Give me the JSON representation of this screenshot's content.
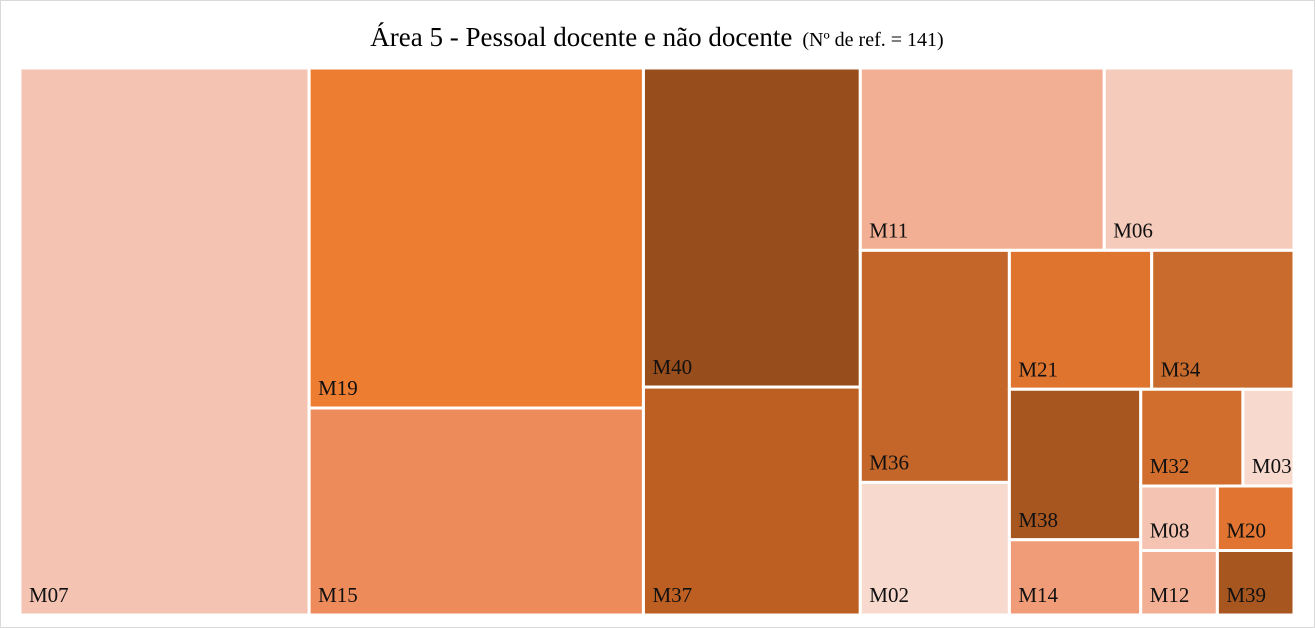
{
  "chart_data": {
    "type": "treemap",
    "title": "Área 5 - Pessoal docente e não docente",
    "title_note": "(Nº de ref. = 141)",
    "categories": [
      "M07",
      "M19",
      "M15",
      "M40",
      "M37",
      "M11",
      "M06",
      "M36",
      "M02",
      "M21",
      "M34",
      "M38",
      "M14",
      "M32",
      "M03",
      "M08",
      "M12",
      "M20",
      "M39"
    ],
    "values": [
      32,
      23,
      14,
      14,
      10,
      9,
      7,
      7,
      4,
      4,
      4,
      4,
      2,
      2,
      1,
      1,
      1,
      1,
      1
    ],
    "colors": [
      "#f4c3b2",
      "#ed7d31",
      "#ed8c5a",
      "#974d1c",
      "#bd5f22",
      "#f2af94",
      "#f5cbbb",
      "#c4662a",
      "#f8d9ce",
      "#de742e",
      "#c96b2c",
      "#a85620",
      "#f09c78",
      "#d16e2d",
      "#f8d9ce",
      "#f4c3b2",
      "#f2af94",
      "#e07430",
      "#a85620"
    ]
  }
}
